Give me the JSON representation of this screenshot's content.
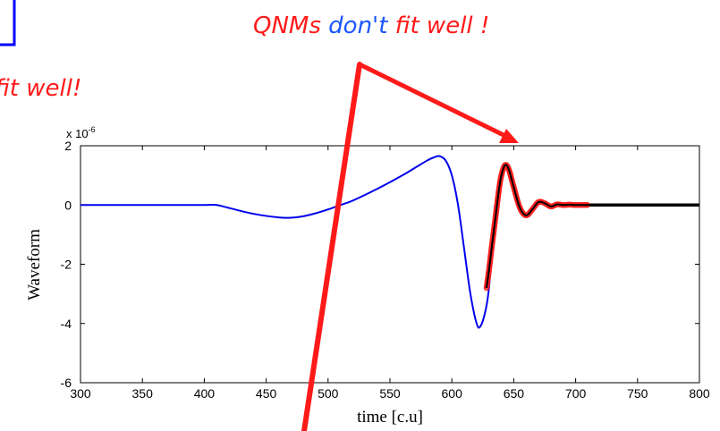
{
  "annotations": {
    "qnm_red_1": "QNMs",
    "qnm_blue": "don't",
    "qnm_red_2": "fit well !",
    "left_fragment": "fit well!"
  },
  "colors": {
    "waveform": "#0000ee",
    "fit_line": "#000000",
    "fit_markers": "#ff2020",
    "annotation_red": "#ff1a1a",
    "annotation_blue": "#1a55ff",
    "box_blue": "#0000ff"
  },
  "chart_data": {
    "type": "line",
    "title": "",
    "xlabel": "time [c.u]",
    "ylabel": "Waveform",
    "y_multiplier": "x 10",
    "y_multiplier_exp": "-6",
    "xlim": [
      300,
      800
    ],
    "ylim": [
      -6,
      2
    ],
    "xticks": [
      300,
      350,
      400,
      450,
      500,
      550,
      600,
      650,
      700,
      750,
      800
    ],
    "yticks": [
      -6,
      -4,
      -2,
      0,
      2
    ],
    "grid": false,
    "legend": "none",
    "series": [
      {
        "color": "#0000ee",
        "x": [
          300,
          330,
          360,
          390,
          400,
          410,
          420,
          440,
          460,
          470,
          480,
          490,
          500,
          510,
          520,
          540,
          560,
          570,
          580,
          585,
          590,
          595,
          600,
          605,
          610,
          615,
          620,
          623,
          627,
          630,
          635,
          640,
          643,
          647,
          650,
          655,
          660,
          665,
          670,
          675,
          680,
          690,
          700,
          710
        ],
        "y": [
          0,
          0,
          0,
          0,
          0,
          0,
          -0.1,
          -0.3,
          -0.42,
          -0.43,
          -0.38,
          -0.28,
          -0.15,
          0,
          0.15,
          0.55,
          1.0,
          1.25,
          1.5,
          1.6,
          1.65,
          1.5,
          1.0,
          0,
          -1.5,
          -3.0,
          -4.0,
          -4.1,
          -3.6,
          -2.8,
          -0.5,
          1.0,
          1.35,
          1.1,
          0.6,
          -0.1,
          -0.35,
          -0.15,
          0.1,
          0.05,
          -0.05,
          0.02,
          0,
          0
        ]
      },
      {
        "color": "#000000",
        "markers": "#ff2020",
        "x": [
          628,
          630,
          632,
          635,
          638,
          640,
          643,
          646,
          650,
          655,
          660,
          665,
          670,
          675,
          680,
          685,
          690,
          695,
          700,
          705,
          710,
          720,
          750,
          780,
          800
        ],
        "y": [
          -2.8,
          -2.2,
          -1.5,
          -0.5,
          0.5,
          1.0,
          1.35,
          1.2,
          0.6,
          -0.1,
          -0.35,
          -0.15,
          0.1,
          0.06,
          -0.05,
          0.02,
          0,
          0.01,
          0,
          0,
          0,
          0,
          0,
          0,
          0
        ]
      }
    ]
  }
}
